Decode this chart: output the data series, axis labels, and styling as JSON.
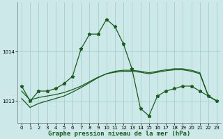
{
  "title": "Graphe pression niveau de la mer (hPa)",
  "background_color": "#cce8e8",
  "grid_color": "#99cccc",
  "line_color": "#1a5c1a",
  "xlim": [
    -0.5,
    23.5
  ],
  "ylim": [
    1012.55,
    1015.0
  ],
  "yticks": [
    1013,
    1014
  ],
  "xticks": [
    0,
    1,
    2,
    3,
    4,
    5,
    6,
    7,
    8,
    9,
    10,
    11,
    12,
    13,
    14,
    15,
    16,
    17,
    18,
    19,
    20,
    21,
    22,
    23
  ],
  "series_main": [
    1013.3,
    1013.0,
    1013.2,
    1013.2,
    1013.25,
    1013.35,
    1013.5,
    1014.05,
    1014.35,
    1014.35,
    1014.65,
    1014.5,
    1014.15,
    1013.65,
    1012.85,
    1012.7,
    1013.1,
    1013.2,
    1013.25,
    1013.3,
    1013.3,
    1013.2,
    1013.1,
    1013.0
  ],
  "series_smooth1": [
    1013.05,
    1012.87,
    1012.95,
    1013.0,
    1013.05,
    1013.1,
    1013.18,
    1013.27,
    1013.37,
    1013.47,
    1013.55,
    1013.6,
    1013.62,
    1013.62,
    1013.6,
    1013.57,
    1013.6,
    1013.63,
    1013.65,
    1013.65,
    1013.62,
    1013.57,
    1013.1,
    1013.0
  ],
  "series_smooth2": [
    1013.2,
    1013.02,
    1013.07,
    1013.1,
    1013.13,
    1013.17,
    1013.23,
    1013.3,
    1013.39,
    1013.48,
    1013.55,
    1013.58,
    1013.6,
    1013.6,
    1013.58,
    1013.55,
    1013.58,
    1013.61,
    1013.63,
    1013.63,
    1013.6,
    1013.55,
    1013.1,
    1013.0
  ],
  "linewidth": 0.9,
  "markersize": 3.5,
  "tick_labelsize": 5.0,
  "title_fontsize": 6.5
}
